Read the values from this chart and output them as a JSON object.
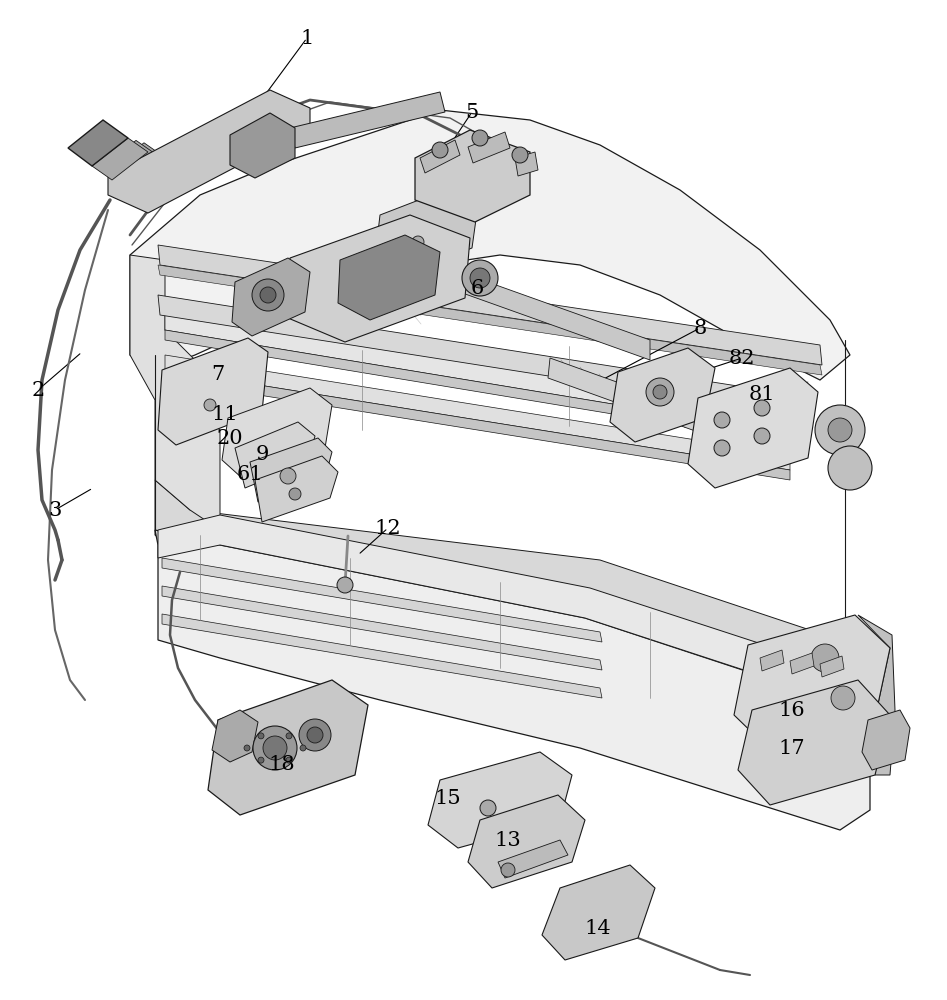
{
  "background_color": "#ffffff",
  "line_color": "#1a1a1a",
  "text_color": "#000000",
  "font_size": 15,
  "label_data": [
    [
      "1",
      307,
      38,
      248,
      118
    ],
    [
      "2",
      38,
      390,
      82,
      352
    ],
    [
      "3",
      55,
      510,
      93,
      488
    ],
    [
      "5",
      472,
      112,
      432,
      172
    ],
    [
      "6",
      477,
      288,
      382,
      328
    ],
    [
      "7",
      218,
      375,
      256,
      388
    ],
    [
      "8",
      700,
      328,
      598,
      382
    ],
    [
      "82",
      742,
      358,
      638,
      392
    ],
    [
      "81",
      762,
      395,
      682,
      428
    ],
    [
      "9",
      262,
      455,
      305,
      450
    ],
    [
      "11",
      225,
      415,
      268,
      428
    ],
    [
      "12",
      388,
      528,
      358,
      555
    ],
    [
      "13",
      508,
      840,
      528,
      820
    ],
    [
      "14",
      598,
      928,
      602,
      898
    ],
    [
      "15",
      448,
      798,
      478,
      775
    ],
    [
      "16",
      792,
      710,
      758,
      692
    ],
    [
      "17",
      792,
      748,
      758,
      728
    ],
    [
      "18",
      282,
      765,
      292,
      742
    ],
    [
      "20",
      230,
      438,
      272,
      445
    ],
    [
      "61",
      250,
      475,
      292,
      468
    ]
  ]
}
